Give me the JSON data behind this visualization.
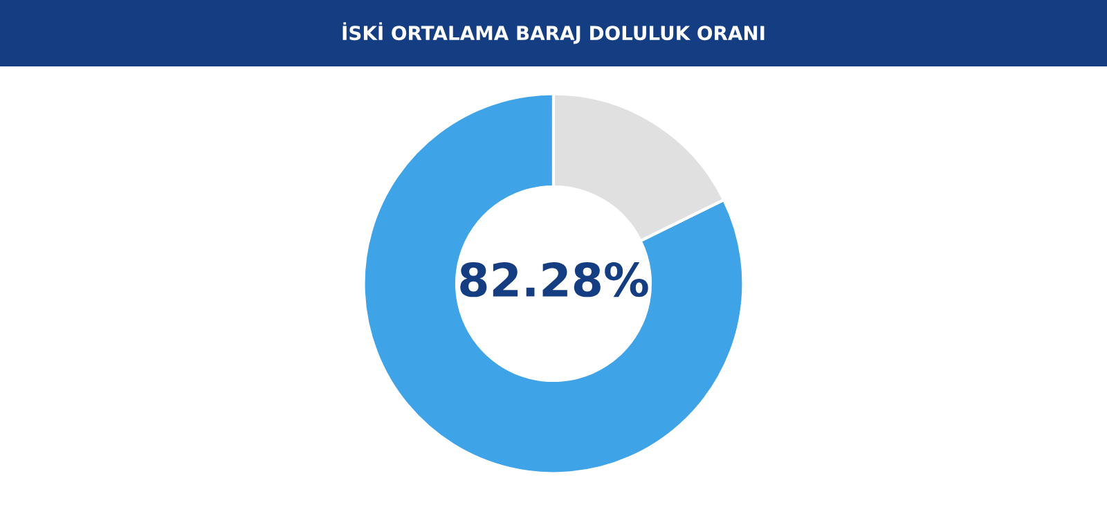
{
  "chart_data": {
    "type": "donut",
    "title": "İSKİ ORTALAMA BARAJ DOLULUK ORANI",
    "categories": [
      null,
      null
    ],
    "values": [
      82.28,
      17.72
    ],
    "colors": [
      "#3fa3e8",
      "#e0e0e0"
    ],
    "annotations": [
      "82.28%"
    ]
  }
}
